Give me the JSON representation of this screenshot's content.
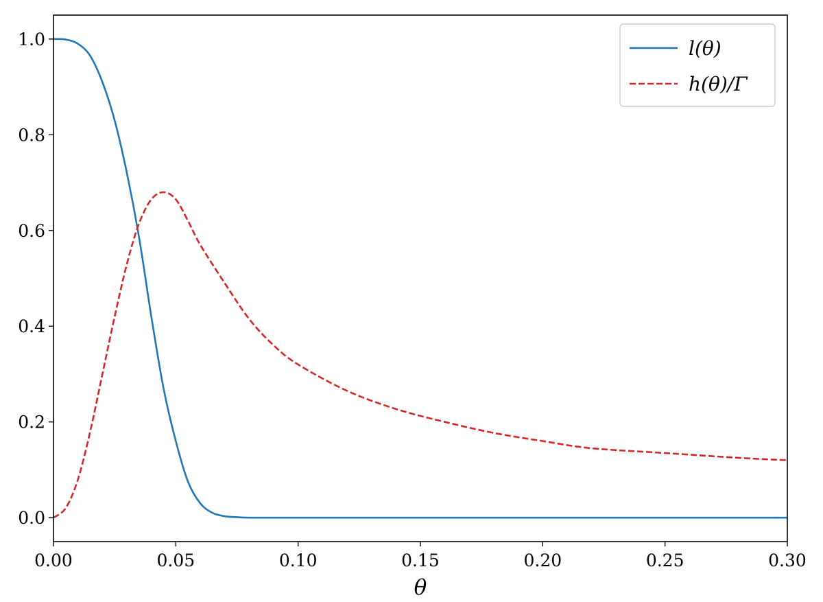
{
  "chart_data": {
    "type": "line",
    "title": "",
    "xlabel": "θ",
    "ylabel": "",
    "xlim": [
      0.0,
      0.3
    ],
    "ylim": [
      -0.05,
      1.05
    ],
    "x_ticks": [
      "0.00",
      "0.05",
      "0.10",
      "0.15",
      "0.20",
      "0.25",
      "0.30"
    ],
    "y_ticks": [
      "0.0",
      "0.2",
      "0.4",
      "0.6",
      "0.8",
      "1.0"
    ],
    "grid": false,
    "legend_position": "top-right",
    "series": [
      {
        "name": "l(θ)",
        "color": "#1f77b4",
        "style": "solid",
        "x": [
          0.0,
          0.005,
          0.01,
          0.015,
          0.02,
          0.025,
          0.03,
          0.035,
          0.04,
          0.045,
          0.05,
          0.055,
          0.06,
          0.065,
          0.07,
          0.075,
          0.08,
          0.09,
          0.1,
          0.15,
          0.2,
          0.25,
          0.3
        ],
        "y": [
          1.0,
          0.999,
          0.99,
          0.965,
          0.91,
          0.83,
          0.72,
          0.585,
          0.42,
          0.27,
          0.16,
          0.075,
          0.03,
          0.01,
          0.003,
          0.001,
          0.0,
          0.0,
          0.0,
          0.0,
          0.0,
          0.0,
          0.0
        ]
      },
      {
        "name": "h(θ)/Γ",
        "color": "#d62728",
        "style": "dashed",
        "x": [
          0.0,
          0.005,
          0.01,
          0.015,
          0.02,
          0.025,
          0.03,
          0.035,
          0.04,
          0.045,
          0.05,
          0.055,
          0.06,
          0.07,
          0.08,
          0.09,
          0.1,
          0.12,
          0.14,
          0.16,
          0.18,
          0.2,
          0.22,
          0.25,
          0.28,
          0.3
        ],
        "y": [
          0.0,
          0.02,
          0.08,
          0.18,
          0.3,
          0.42,
          0.53,
          0.615,
          0.665,
          0.68,
          0.665,
          0.62,
          0.57,
          0.49,
          0.415,
          0.36,
          0.32,
          0.265,
          0.227,
          0.2,
          0.177,
          0.16,
          0.145,
          0.135,
          0.125,
          0.12
        ]
      }
    ]
  }
}
